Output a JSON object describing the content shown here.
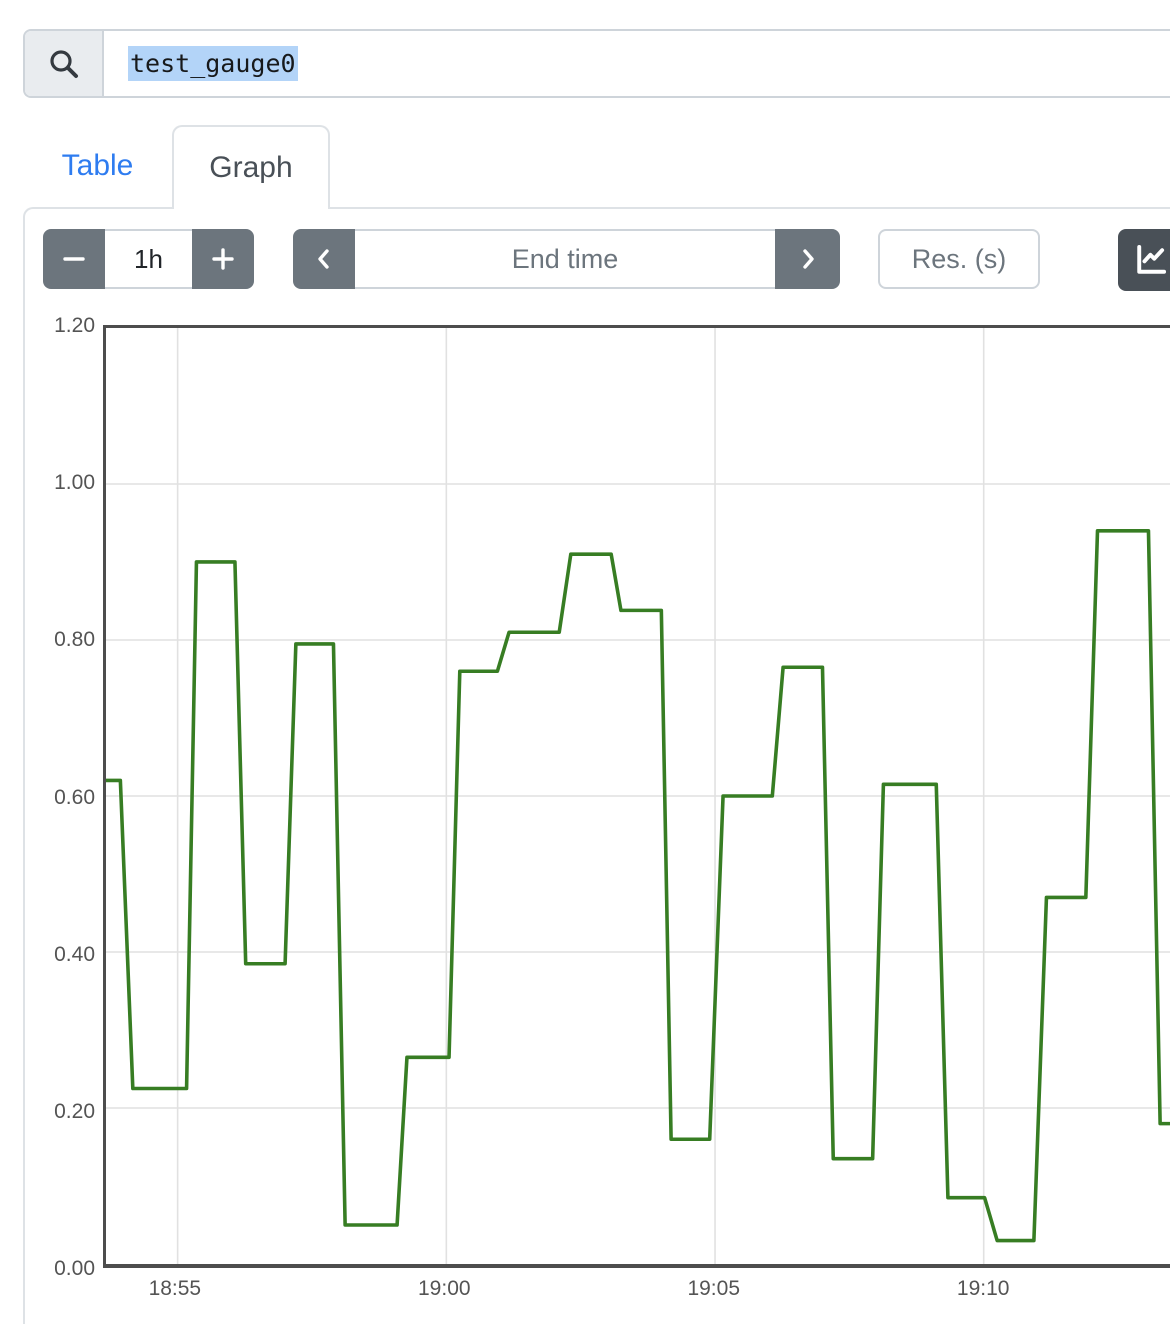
{
  "search": {
    "value": "test_gauge0",
    "selection_color": "#b3d4f8",
    "icon": "magnifier"
  },
  "tabs": {
    "table_label": "Table",
    "graph_label": "Graph",
    "active": "Graph",
    "link_color": "#2e7cf0"
  },
  "toolbar": {
    "duration_value": "1h",
    "minus_icon": "minus",
    "plus_icon": "plus",
    "prev_icon": "chevron-left",
    "next_icon": "chevron-right",
    "end_time_placeholder": "End time",
    "resolution_placeholder": "Res. (s)",
    "chart_button_icon": "line-chart",
    "button_color": "#6c757d",
    "chart_button_color": "#495057"
  },
  "chart_data": {
    "type": "line",
    "shape": "stepped-gauge",
    "title": "",
    "xlabel": "",
    "ylabel": "",
    "grid": true,
    "legend_position": "none",
    "x_range": {
      "min": "18:53:40",
      "max": "19:13:28"
    },
    "y_range": [
      0,
      1.2
    ],
    "x_ticks": [
      {
        "label": "18:55",
        "time": "18:55:00"
      },
      {
        "label": "19:00",
        "time": "19:00:00"
      },
      {
        "label": "19:05",
        "time": "19:05:00"
      },
      {
        "label": "19:10",
        "time": "19:10:00"
      }
    ],
    "y_ticks": [
      {
        "label": "1.20",
        "value": 1.2
      },
      {
        "label": "1.00",
        "value": 1.0
      },
      {
        "label": "0.80",
        "value": 0.8
      },
      {
        "label": "0.60",
        "value": 0.6
      },
      {
        "label": "0.40",
        "value": 0.4
      },
      {
        "label": "0.20",
        "value": 0.2
      },
      {
        "label": "0.00",
        "value": 0.0
      }
    ],
    "gridline_color": "#e1e1e1",
    "border_color": "#4d4d4d",
    "series": [
      {
        "name": "test_gauge0",
        "color": "#377d23",
        "points": [
          {
            "t": "18:53:40",
            "v": 0.62
          },
          {
            "t": "18:53:56",
            "v": 0.62
          },
          {
            "t": "18:54:10",
            "v": 0.225
          },
          {
            "t": "18:55:10",
            "v": 0.225
          },
          {
            "t": "18:55:21",
            "v": 0.9
          },
          {
            "t": "18:56:04",
            "v": 0.9
          },
          {
            "t": "18:56:16",
            "v": 0.385
          },
          {
            "t": "18:57:00",
            "v": 0.385
          },
          {
            "t": "18:57:12",
            "v": 0.795
          },
          {
            "t": "18:57:54",
            "v": 0.795
          },
          {
            "t": "18:58:07",
            "v": 0.05
          },
          {
            "t": "18:59:05",
            "v": 0.05
          },
          {
            "t": "18:59:16",
            "v": 0.265
          },
          {
            "t": "19:00:03",
            "v": 0.265
          },
          {
            "t": "19:00:15",
            "v": 0.76
          },
          {
            "t": "19:00:57",
            "v": 0.76
          },
          {
            "t": "19:01:10",
            "v": 0.81
          },
          {
            "t": "19:02:06",
            "v": 0.81
          },
          {
            "t": "19:02:19",
            "v": 0.91
          },
          {
            "t": "19:03:04",
            "v": 0.91
          },
          {
            "t": "19:03:15",
            "v": 0.838
          },
          {
            "t": "19:04:00",
            "v": 0.838
          },
          {
            "t": "19:04:11",
            "v": 0.16
          },
          {
            "t": "19:04:54",
            "v": 0.16
          },
          {
            "t": "19:05:09",
            "v": 0.6
          },
          {
            "t": "19:06:04",
            "v": 0.6
          },
          {
            "t": "19:06:16",
            "v": 0.765
          },
          {
            "t": "19:07:00",
            "v": 0.765
          },
          {
            "t": "19:07:12",
            "v": 0.135
          },
          {
            "t": "19:07:56",
            "v": 0.135
          },
          {
            "t": "19:08:08",
            "v": 0.615
          },
          {
            "t": "19:09:07",
            "v": 0.615
          },
          {
            "t": "19:09:20",
            "v": 0.085
          },
          {
            "t": "19:10:01",
            "v": 0.085
          },
          {
            "t": "19:10:15",
            "v": 0.03
          },
          {
            "t": "19:10:56",
            "v": 0.03
          },
          {
            "t": "19:11:10",
            "v": 0.47
          },
          {
            "t": "19:11:54",
            "v": 0.47
          },
          {
            "t": "19:12:07",
            "v": 0.94
          },
          {
            "t": "19:13:04",
            "v": 0.94
          },
          {
            "t": "19:13:17",
            "v": 0.18
          },
          {
            "t": "19:13:30",
            "v": 0.18
          }
        ]
      }
    ]
  }
}
